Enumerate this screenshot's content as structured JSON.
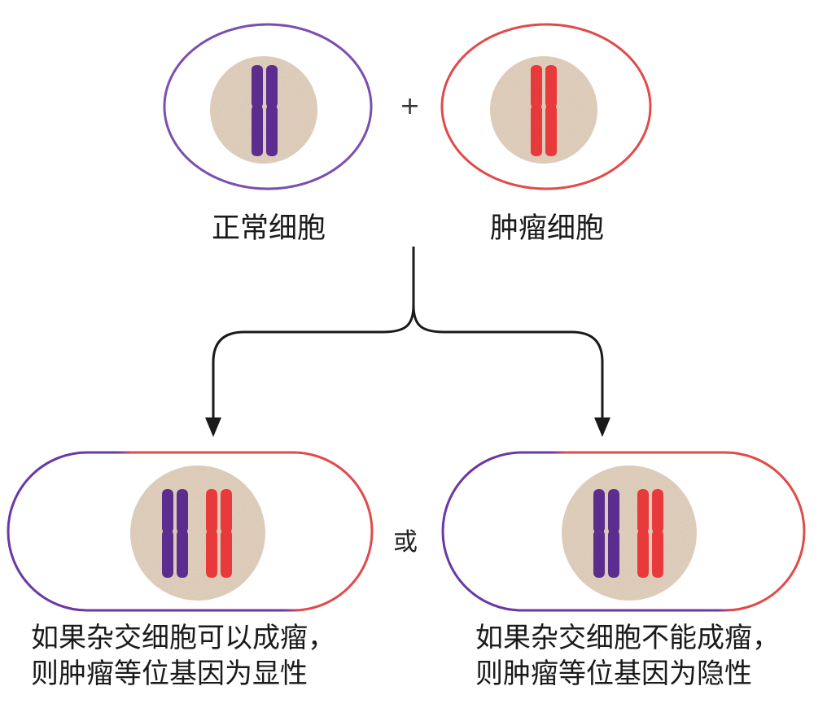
{
  "cells": {
    "normal": {
      "label": "正常细胞"
    },
    "tumor": {
      "label": "肿瘤细胞"
    }
  },
  "operators": {
    "plus": "+",
    "or": "或"
  },
  "outcomes": {
    "dominant": {
      "line1": "如果杂交细胞可以成瘤，",
      "line2": "则肿瘤等位基因为显性"
    },
    "recessive": {
      "line1": "如果杂交细胞不能成瘤，",
      "line2": "则肿瘤等位基因为隐性"
    }
  },
  "colors": {
    "normal": "#5b2d8e",
    "tumor": "#e83a3a",
    "nucleus": "#e6d6c6",
    "normal_outline": "#7b4fb0",
    "tumor_outline": "#e24a4a",
    "arrow": "#1a1a1a"
  }
}
